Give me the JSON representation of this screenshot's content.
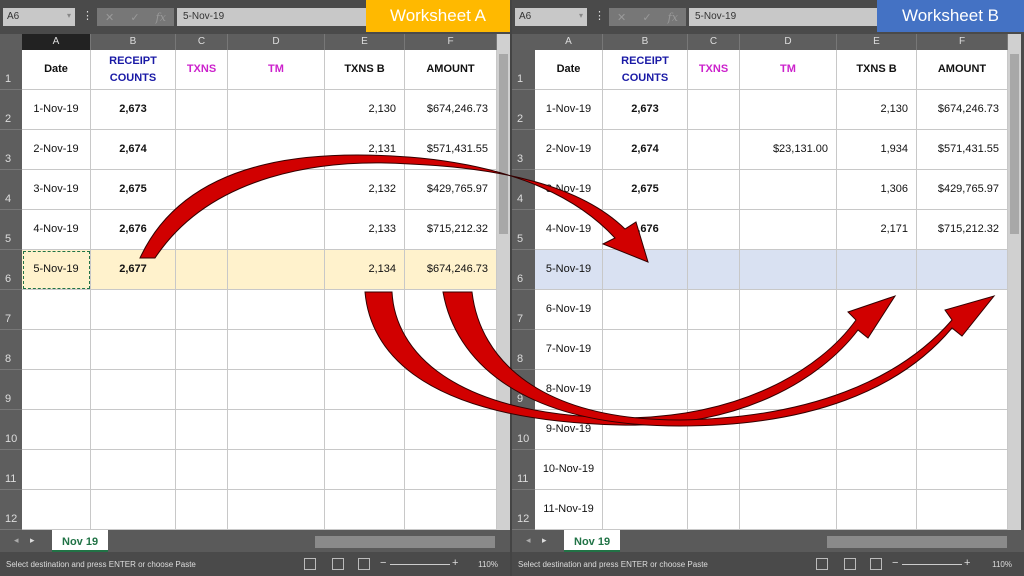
{
  "panes": [
    {
      "id": "left",
      "label": "Worksheet A",
      "label_color": "#ffb900",
      "name_box": "A6",
      "formula": "5-Nov-19",
      "sheet_tab": "Nov 19",
      "status": "Select destination and press ENTER or choose Paste",
      "zoom": "110%",
      "highlight_color": "#fff2cc",
      "columns": [
        "A",
        "B",
        "C",
        "D",
        "E",
        "F"
      ],
      "headers": [
        {
          "text": "Date",
          "color": "#111"
        },
        {
          "text": "RECEIPT COUNTS",
          "color": "#1a1aa6"
        },
        {
          "text": "TXNS",
          "color": "#cc22cc"
        },
        {
          "text": "TM",
          "color": "#cc22cc"
        },
        {
          "text": "TXNS B",
          "color": "#111"
        },
        {
          "text": "AMOUNT",
          "color": "#111"
        }
      ],
      "rows": [
        [
          "1-Nov-19",
          "2,673",
          "",
          "",
          "2,130",
          "$674,246.73"
        ],
        [
          "2-Nov-19",
          "2,674",
          "",
          "",
          "2,131",
          "$571,431.55"
        ],
        [
          "3-Nov-19",
          "2,675",
          "",
          "",
          "2,132",
          "$429,765.97"
        ],
        [
          "4-Nov-19",
          "2,676",
          "",
          "",
          "2,133",
          "$715,212.32"
        ],
        [
          "5-Nov-19",
          "2,677",
          "",
          "",
          "2,134",
          "$674,246.73"
        ],
        [
          "",
          "",
          "",
          "",
          "",
          ""
        ],
        [
          "",
          "",
          "",
          "",
          "",
          ""
        ],
        [
          "",
          "",
          "",
          "",
          "",
          ""
        ],
        [
          "",
          "",
          "",
          "",
          "",
          ""
        ],
        [
          "",
          "",
          "",
          "",
          "",
          ""
        ],
        [
          "",
          "",
          "",
          "",
          "",
          ""
        ]
      ]
    },
    {
      "id": "right",
      "label": "Worksheet B",
      "label_color": "#4472c4",
      "name_box": "A6",
      "formula": "5-Nov-19",
      "sheet_tab": "Nov 19",
      "status": "Select destination and press ENTER or choose Paste",
      "zoom": "110%",
      "highlight_color": "#d9e1f2",
      "columns": [
        "A",
        "B",
        "C",
        "D",
        "E",
        "F"
      ],
      "headers": [
        {
          "text": "Date",
          "color": "#111"
        },
        {
          "text": "RECEIPT COUNTS",
          "color": "#1a1aa6"
        },
        {
          "text": "TXNS",
          "color": "#cc22cc"
        },
        {
          "text": "TM",
          "color": "#cc22cc"
        },
        {
          "text": "TXNS B",
          "color": "#111"
        },
        {
          "text": "AMOUNT",
          "color": "#111"
        }
      ],
      "rows": [
        [
          "1-Nov-19",
          "2,673",
          "",
          "",
          "2,130",
          "$674,246.73"
        ],
        [
          "2-Nov-19",
          "2,674",
          "",
          "$23,131.00",
          "1,934",
          "$571,431.55"
        ],
        [
          "3-Nov-19",
          "2,675",
          "",
          "",
          "1,306",
          "$429,765.97"
        ],
        [
          "4-Nov-19",
          "2,676",
          "",
          "",
          "2,171",
          "$715,212.32"
        ],
        [
          "5-Nov-19",
          "",
          "",
          "",
          "",
          ""
        ],
        [
          "6-Nov-19",
          "",
          "",
          "",
          "",
          ""
        ],
        [
          "7-Nov-19",
          "",
          "",
          "",
          "",
          ""
        ],
        [
          "8-Nov-19",
          "",
          "",
          "",
          "",
          ""
        ],
        [
          "9-Nov-19",
          "",
          "",
          "",
          "",
          ""
        ],
        [
          "10-Nov-19",
          "",
          "",
          "",
          "",
          ""
        ],
        [
          "11-Nov-19",
          "",
          "",
          "",
          "",
          ""
        ]
      ]
    }
  ],
  "arrow_color": "#d10000"
}
